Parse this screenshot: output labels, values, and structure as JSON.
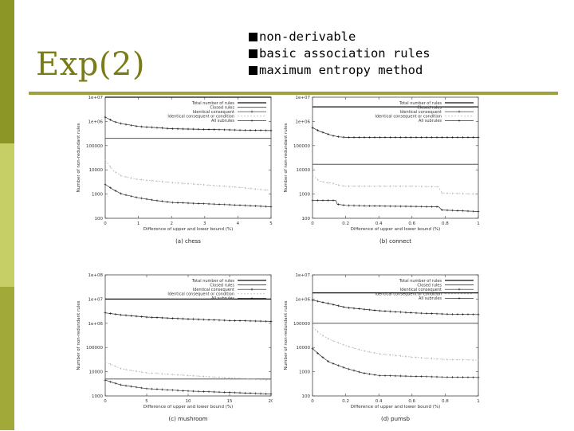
{
  "slide": {
    "title": "Exp(2)",
    "bullets": [
      "non-derivable",
      "basic association rules",
      "maximum entropy method"
    ]
  },
  "legend_labels": [
    "Total number of rules",
    "Closed rules",
    "Identical consequent",
    "Identical consequent or condition",
    "All subrules"
  ],
  "chart_data": [
    {
      "type": "line",
      "caption": "(a) chess",
      "xlabel": "Difference of upper and lower bound (%)",
      "ylabel": "Number of non-redundant rules",
      "xlim": [
        0,
        5
      ],
      "ylim": [
        100,
        10000000
      ],
      "scale_y": "log",
      "xticks": [
        {
          "v": 0,
          "t": "0"
        },
        {
          "v": 1,
          "t": "1"
        },
        {
          "v": 2,
          "t": "2"
        },
        {
          "v": 3,
          "t": "3"
        },
        {
          "v": 4,
          "t": "4"
        },
        {
          "v": 5,
          "t": "5"
        }
      ],
      "yticks": [
        {
          "v": 10000000,
          "t": "1e+07"
        },
        {
          "v": 1000000,
          "t": "1e+06"
        },
        {
          "v": 100000,
          "t": "100000"
        },
        {
          "v": 10000,
          "t": "10000"
        },
        {
          "v": 1000,
          "t": "1000"
        },
        {
          "v": 100,
          "t": "100"
        }
      ],
      "series": [
        {
          "name": "Total number of rules",
          "x": [
            0,
            5
          ],
          "y": [
            10000000,
            10000000
          ]
        },
        {
          "name": "Closed rules",
          "x": [
            0,
            5
          ],
          "y": [
            200000,
            200000
          ]
        },
        {
          "name": "Identical consequent",
          "x": [
            0,
            0.25,
            0.5,
            1,
            1.5,
            2,
            3,
            4,
            5
          ],
          "y": [
            1500000,
            1000000,
            800000,
            620000,
            560000,
            500000,
            470000,
            440000,
            420000
          ]
        },
        {
          "name": "Identical consequent or condition",
          "x": [
            0,
            0.25,
            0.5,
            1,
            1.5,
            2,
            3,
            4,
            5
          ],
          "y": [
            25000,
            9000,
            5500,
            4000,
            3500,
            3000,
            2400,
            1900,
            1400
          ]
        },
        {
          "name": "All subrules",
          "x": [
            0,
            0.25,
            0.5,
            1,
            1.5,
            2,
            3,
            4,
            5
          ],
          "y": [
            2500,
            1500,
            1000,
            700,
            550,
            450,
            400,
            350,
            300
          ]
        }
      ]
    },
    {
      "type": "line",
      "caption": "(b) connect",
      "xlabel": "Difference of upper and lower bound (%)",
      "ylabel": "Number of non-redundant rules",
      "xlim": [
        0,
        1
      ],
      "ylim": [
        100,
        10000000
      ],
      "scale_y": "log",
      "xticks": [
        {
          "v": 0,
          "t": "0"
        },
        {
          "v": 0.2,
          "t": "0.2"
        },
        {
          "v": 0.4,
          "t": "0.4"
        },
        {
          "v": 0.6,
          "t": "0.6"
        },
        {
          "v": 0.8,
          "t": "0.8"
        },
        {
          "v": 1,
          "t": "1"
        }
      ],
      "yticks": [
        {
          "v": 10000000,
          "t": "1e+07"
        },
        {
          "v": 1000000,
          "t": "1e+06"
        },
        {
          "v": 100000,
          "t": "100000"
        },
        {
          "v": 10000,
          "t": "10000"
        },
        {
          "v": 1000,
          "t": "1000"
        },
        {
          "v": 100,
          "t": "100"
        }
      ],
      "series": [
        {
          "name": "Total number of rules",
          "x": [
            0,
            1
          ],
          "y": [
            4000000,
            4000000
          ]
        },
        {
          "name": "Closed rules",
          "x": [
            0,
            1
          ],
          "y": [
            17000,
            17000
          ]
        },
        {
          "name": "Identical consequent",
          "x": [
            0,
            0.04,
            0.08,
            0.12,
            0.16,
            0.2,
            0.4,
            0.6,
            0.8,
            1
          ],
          "y": [
            550000,
            400000,
            320000,
            260000,
            230000,
            220000,
            220000,
            220000,
            220000,
            220000
          ]
        },
        {
          "name": "Identical consequent or condition",
          "x": [
            0,
            0.04,
            0.08,
            0.12,
            0.16,
            0.2,
            0.4,
            0.6,
            0.76,
            0.78,
            1
          ],
          "y": [
            6000,
            3500,
            3000,
            2800,
            2300,
            2100,
            2100,
            2100,
            2000,
            1100,
            1000
          ]
        },
        {
          "name": "All subrules",
          "x": [
            0,
            0.14,
            0.15,
            0.2,
            0.4,
            0.6,
            0.76,
            0.78,
            1
          ],
          "y": [
            550,
            550,
            380,
            340,
            320,
            310,
            300,
            220,
            190
          ]
        }
      ]
    },
    {
      "type": "line",
      "caption": "(c) mushroom",
      "xlabel": "Difference of upper and lower bound (%)",
      "ylabel": "Number of non-redundant rules",
      "xlim": [
        0,
        20
      ],
      "ylim": [
        1000,
        100000000
      ],
      "scale_y": "log",
      "xticks": [
        {
          "v": 0,
          "t": "0"
        },
        {
          "v": 5,
          "t": "5"
        },
        {
          "v": 10,
          "t": "10"
        },
        {
          "v": 15,
          "t": "15"
        },
        {
          "v": 20,
          "t": "20"
        }
      ],
      "yticks": [
        {
          "v": 100000000,
          "t": "1e+08"
        },
        {
          "v": 10000000,
          "t": "1e+07"
        },
        {
          "v": 1000000,
          "t": "1e+06"
        },
        {
          "v": 100000,
          "t": "100000"
        },
        {
          "v": 10000,
          "t": "10000"
        },
        {
          "v": 1000,
          "t": "1000"
        }
      ],
      "series": [
        {
          "name": "Total number of rules",
          "x": [
            0,
            20
          ],
          "y": [
            10000000,
            10000000
          ]
        },
        {
          "name": "Closed rules",
          "x": [
            0,
            20
          ],
          "y": [
            5000,
            5000
          ]
        },
        {
          "name": "Identical consequent",
          "x": [
            0,
            2,
            5,
            10,
            15,
            20
          ],
          "y": [
            2700000,
            2200000,
            1800000,
            1500000,
            1300000,
            1200000
          ]
        },
        {
          "name": "Identical consequent or condition",
          "x": [
            0,
            1,
            2,
            5,
            10,
            15,
            20
          ],
          "y": [
            25000,
            18000,
            13000,
            9000,
            7000,
            5500,
            4500
          ]
        },
        {
          "name": "All subrules",
          "x": [
            0,
            1,
            2,
            5,
            10,
            15,
            20
          ],
          "y": [
            4500,
            3500,
            2800,
            2000,
            1600,
            1400,
            1200
          ]
        }
      ]
    },
    {
      "type": "line",
      "caption": "(d) pumsb",
      "xlabel": "Difference of upper and lower bound (%)",
      "ylabel": "Number of non-redundant rules",
      "xlim": [
        0,
        1
      ],
      "ylim": [
        100,
        10000000
      ],
      "scale_y": "log",
      "xticks": [
        {
          "v": 0,
          "t": "0"
        },
        {
          "v": 0.2,
          "t": "0.2"
        },
        {
          "v": 0.4,
          "t": "0.4"
        },
        {
          "v": 0.6,
          "t": "0.6"
        },
        {
          "v": 0.8,
          "t": "0.8"
        },
        {
          "v": 1,
          "t": "1"
        }
      ],
      "yticks": [
        {
          "v": 10000000,
          "t": "1e+07"
        },
        {
          "v": 1000000,
          "t": "1e+06"
        },
        {
          "v": 100000,
          "t": "100000"
        },
        {
          "v": 10000,
          "t": "10000"
        },
        {
          "v": 1000,
          "t": "1000"
        },
        {
          "v": 100,
          "t": "100"
        }
      ],
      "series": [
        {
          "name": "Total number of rules",
          "x": [
            0,
            1
          ],
          "y": [
            1800000,
            1800000
          ]
        },
        {
          "name": "Closed rules",
          "x": [
            0,
            1
          ],
          "y": [
            100000,
            100000
          ]
        },
        {
          "name": "Identical consequent",
          "x": [
            0,
            0.1,
            0.2,
            0.4,
            0.6,
            0.8,
            1
          ],
          "y": [
            900000,
            650000,
            450000,
            330000,
            270000,
            240000,
            230000
          ]
        },
        {
          "name": "Identical consequent or condition",
          "x": [
            0,
            0.05,
            0.1,
            0.2,
            0.3,
            0.4,
            0.6,
            0.8,
            1
          ],
          "y": [
            70000,
            35000,
            22000,
            12000,
            7500,
            5500,
            4000,
            3200,
            3000
          ]
        },
        {
          "name": "All subrules",
          "x": [
            0,
            0.05,
            0.1,
            0.2,
            0.3,
            0.4,
            0.6,
            0.8,
            1
          ],
          "y": [
            9000,
            4500,
            2500,
            1400,
            900,
            700,
            650,
            600,
            580
          ]
        }
      ]
    }
  ]
}
